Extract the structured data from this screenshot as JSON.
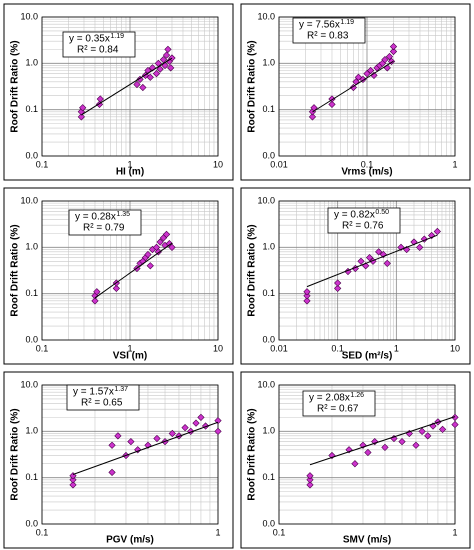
{
  "chart_data": [
    {
      "type": "scatter",
      "x_label": "HI (m)",
      "y_label": "Roof Drift Ratio (%)",
      "annotation": {
        "equation": "y = 0.35x",
        "exponent": "1.19",
        "r2": "R² = 0.84"
      },
      "log_x": true,
      "log_y": true,
      "grid": true,
      "minor_grid": true,
      "xlim": [
        0.1,
        10
      ],
      "xticks": [
        0.1,
        1,
        10
      ],
      "ylim": [
        0.01,
        10
      ],
      "yticks": [
        {
          "value": 0.01,
          "label": "0.0"
        },
        0.1,
        {
          "value": 1,
          "label": "1.0"
        },
        {
          "value": 10,
          "label": "10.0"
        }
      ],
      "points": {
        "color": "#cc33cc",
        "x": [
          0.28,
          0.28,
          0.29,
          0.45,
          0.46,
          1.2,
          1.3,
          1.4,
          1.5,
          1.6,
          1.7,
          1.8,
          2.0,
          2.1,
          2.2,
          2.4,
          2.5,
          2.6,
          2.8,
          3.0,
          2.9,
          2.7
        ],
        "values": [
          0.07,
          0.09,
          0.11,
          0.13,
          0.17,
          0.35,
          0.45,
          0.3,
          0.55,
          0.7,
          0.5,
          0.8,
          0.6,
          1.0,
          0.75,
          1.2,
          0.9,
          1.5,
          1.1,
          1.3,
          0.8,
          2.0
        ]
      },
      "trendline": {
        "color": "#000000",
        "x": [
          0.28,
          3.0
        ],
        "values": [
          0.077,
          1.29
        ]
      }
    },
    {
      "type": "scatter",
      "x_label": "Vrms (m/s)",
      "y_label": "Roof Drift Ratio (%)",
      "annotation": {
        "equation": "y = 7.56x",
        "exponent": "1.19",
        "r2": "R² = 0.83"
      },
      "log_x": true,
      "log_y": true,
      "grid": true,
      "minor_grid": true,
      "xlim": [
        0.01,
        1
      ],
      "xticks": [
        0.01,
        0.1,
        1
      ],
      "ylim": [
        0.01,
        10
      ],
      "yticks": [
        {
          "value": 0.01,
          "label": "0.0"
        },
        0.1,
        {
          "value": 1,
          "label": "1.0"
        },
        {
          "value": 10,
          "label": "10.0"
        }
      ],
      "points": {
        "color": "#cc33cc",
        "x": [
          0.024,
          0.024,
          0.025,
          0.04,
          0.04,
          0.07,
          0.075,
          0.08,
          0.09,
          0.1,
          0.11,
          0.12,
          0.13,
          0.14,
          0.15,
          0.16,
          0.17,
          0.18,
          0.19,
          0.2,
          0.2
        ],
        "values": [
          0.07,
          0.09,
          0.11,
          0.13,
          0.17,
          0.3,
          0.4,
          0.5,
          0.45,
          0.6,
          0.7,
          0.55,
          0.8,
          0.9,
          1.0,
          1.2,
          0.8,
          1.4,
          1.1,
          1.8,
          2.3
        ]
      },
      "trendline": {
        "color": "#000000",
        "x": [
          0.024,
          0.2
        ],
        "values": [
          0.089,
          1.11
        ]
      }
    },
    {
      "type": "scatter",
      "x_label": "VSI (m)",
      "y_label": "Roof Drift Ratio (%)",
      "annotation": {
        "equation": "y = 0.28x",
        "exponent": "1.35",
        "r2": "R² = 0.79"
      },
      "log_x": true,
      "log_y": true,
      "grid": true,
      "minor_grid": true,
      "xlim": [
        0.1,
        10
      ],
      "xticks": [
        0.1,
        1,
        10
      ],
      "ylim": [
        0.01,
        10
      ],
      "yticks": [
        {
          "value": 0.01,
          "label": "0.0"
        },
        0.1,
        {
          "value": 1,
          "label": "1.0"
        },
        {
          "value": 10,
          "label": "10.0"
        }
      ],
      "points": {
        "color": "#cc33cc",
        "x": [
          0.4,
          0.4,
          0.42,
          0.7,
          0.7,
          1.2,
          1.3,
          1.4,
          1.5,
          1.6,
          1.7,
          1.8,
          2.0,
          2.1,
          2.2,
          2.4,
          2.5,
          2.6,
          2.8,
          3.0
        ],
        "values": [
          0.07,
          0.09,
          0.11,
          0.13,
          0.17,
          0.35,
          0.45,
          0.5,
          0.6,
          0.7,
          0.4,
          0.9,
          1.0,
          0.8,
          1.3,
          1.6,
          1.1,
          1.9,
          1.2,
          1.0
        ]
      },
      "trendline": {
        "color": "#000000",
        "x": [
          0.4,
          3.0
        ],
        "values": [
          0.081,
          1.23
        ]
      }
    },
    {
      "type": "scatter",
      "x_label": "SED (m²/s)",
      "y_label": "Roof Drift Ratio (%)",
      "annotation": {
        "equation": "y = 0.82x",
        "exponent": "0.50",
        "r2": "R² = 0.76"
      },
      "log_x": true,
      "log_y": true,
      "grid": true,
      "minor_grid": true,
      "xlim": [
        0.01,
        10
      ],
      "xticks": [
        0.01,
        0.1,
        1,
        10
      ],
      "ylim": [
        0.01,
        10
      ],
      "yticks": [
        {
          "value": 0.01,
          "label": "0.0"
        },
        0.1,
        {
          "value": 1,
          "label": "1.0"
        },
        {
          "value": 10,
          "label": "10.0"
        }
      ],
      "points": {
        "color": "#cc33cc",
        "x": [
          0.03,
          0.03,
          0.03,
          0.1,
          0.1,
          0.15,
          0.2,
          0.25,
          0.3,
          0.35,
          0.4,
          0.5,
          0.6,
          0.7,
          1.2,
          1.5,
          2.0,
          2.5,
          3.0,
          4.0,
          5.0
        ],
        "values": [
          0.07,
          0.09,
          0.11,
          0.13,
          0.17,
          0.3,
          0.35,
          0.5,
          0.4,
          0.6,
          0.5,
          0.8,
          0.7,
          0.45,
          1.0,
          0.9,
          1.3,
          1.0,
          1.5,
          1.8,
          2.2
        ]
      },
      "trendline": {
        "color": "#000000",
        "x": [
          0.03,
          5.0
        ],
        "values": [
          0.142,
          1.83
        ]
      }
    },
    {
      "type": "scatter",
      "x_label": "PGV (m/s)",
      "y_label": "Roof Drift Ratio (%)",
      "annotation": {
        "equation": "y = 1.57x",
        "exponent": "1.37",
        "r2": "R² = 0.65"
      },
      "log_x": true,
      "log_y": true,
      "grid": true,
      "minor_grid": true,
      "xlim": [
        0.1,
        1
      ],
      "xticks": [
        0.1,
        1
      ],
      "ylim": [
        0.01,
        10
      ],
      "yticks": [
        {
          "value": 0.01,
          "label": "0.0"
        },
        0.1,
        {
          "value": 1,
          "label": "1.0"
        },
        {
          "value": 10,
          "label": "10.0"
        }
      ],
      "points": {
        "color": "#cc33cc",
        "x": [
          0.15,
          0.15,
          0.15,
          0.25,
          0.25,
          0.27,
          0.3,
          0.32,
          0.35,
          0.4,
          0.45,
          0.5,
          0.55,
          0.6,
          0.65,
          0.7,
          0.75,
          0.8,
          0.85,
          1.0,
          1.0
        ],
        "values": [
          0.07,
          0.09,
          0.11,
          0.13,
          0.5,
          0.8,
          0.3,
          0.6,
          0.4,
          0.5,
          0.7,
          0.6,
          0.9,
          0.8,
          1.2,
          1.0,
          1.5,
          2.0,
          1.3,
          1.0,
          1.7
        ]
      },
      "trendline": {
        "color": "#000000",
        "x": [
          0.15,
          1.0
        ],
        "values": [
          0.117,
          1.57
        ]
      }
    },
    {
      "type": "scatter",
      "x_label": "SMV (m/s)",
      "y_label": "Roof Drift Ratio (%)",
      "annotation": {
        "equation": "y = 2.08x",
        "exponent": "1.26",
        "r2": "R² = 0.67"
      },
      "log_x": true,
      "log_y": true,
      "grid": true,
      "minor_grid": true,
      "xlim": [
        0.1,
        1
      ],
      "xticks": [
        0.1,
        1
      ],
      "ylim": [
        0.01,
        10
      ],
      "yticks": [
        {
          "value": 0.01,
          "label": "0.0"
        },
        0.1,
        {
          "value": 1,
          "label": "1.0"
        },
        {
          "value": 10,
          "label": "10.0"
        }
      ],
      "points": {
        "color": "#cc33cc",
        "x": [
          0.15,
          0.15,
          0.15,
          0.2,
          0.25,
          0.27,
          0.3,
          0.32,
          0.35,
          0.4,
          0.45,
          0.5,
          0.55,
          0.6,
          0.65,
          0.7,
          0.75,
          0.8,
          0.85,
          1.0,
          1.0
        ],
        "values": [
          0.07,
          0.09,
          0.11,
          0.3,
          0.4,
          0.2,
          0.5,
          0.35,
          0.6,
          0.45,
          0.7,
          0.6,
          0.9,
          0.5,
          1.0,
          0.8,
          1.3,
          1.6,
          1.1,
          1.4,
          2.0
        ]
      },
      "trendline": {
        "color": "#000000",
        "x": [
          0.15,
          1.0
        ],
        "values": [
          0.19,
          2.08
        ]
      }
    }
  ]
}
